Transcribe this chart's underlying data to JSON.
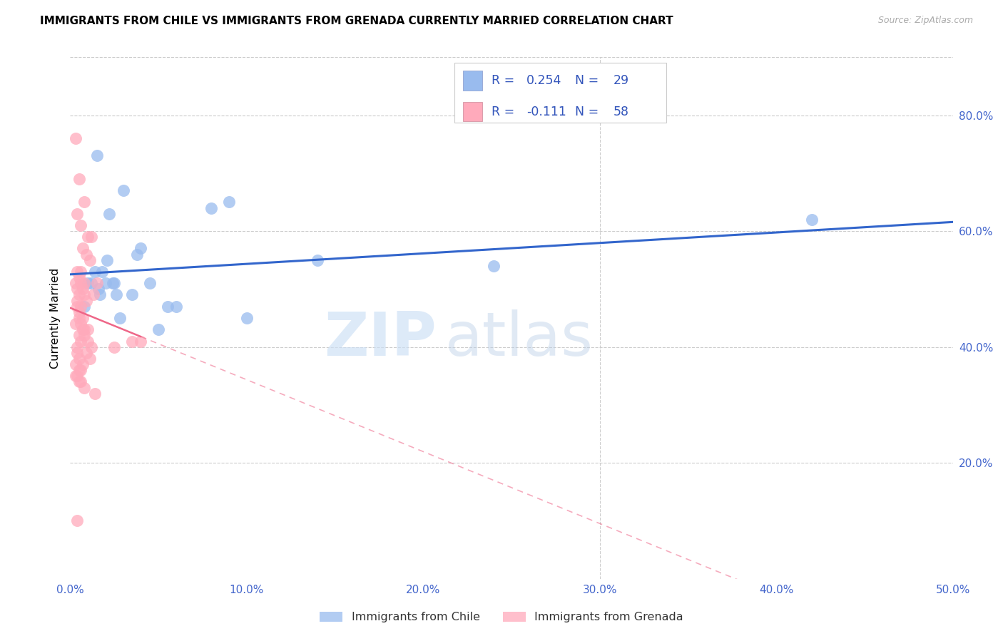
{
  "title": "IMMIGRANTS FROM CHILE VS IMMIGRANTS FROM GRENADA CURRENTLY MARRIED CORRELATION CHART",
  "source": "Source: ZipAtlas.com",
  "ylabel": "Currently Married",
  "x_ticks": [
    0.0,
    10.0,
    20.0,
    30.0,
    40.0,
    50.0
  ],
  "y_ticks_right": [
    20.0,
    40.0,
    60.0,
    80.0
  ],
  "xlim": [
    0.0,
    50.0
  ],
  "ylim": [
    0.0,
    90.0
  ],
  "chile_R": "0.254",
  "chile_N": "29",
  "grenada_R": "-0.111",
  "grenada_N": "58",
  "chile_color": "#99bbee",
  "grenada_color": "#ffaabb",
  "chile_line_color": "#3366cc",
  "grenada_line_color": "#ee6688",
  "legend_text_color": "#3355bb",
  "tick_color": "#4466cc",
  "legend_chile_label": "Immigrants from Chile",
  "legend_grenada_label": "Immigrants from Grenada",
  "chile_x": [
    1.5,
    3.0,
    2.2,
    4.0,
    8.0,
    3.8,
    1.8,
    1.0,
    2.5,
    1.6,
    2.0,
    3.5,
    4.5,
    9.0,
    14.0,
    1.2,
    2.8,
    1.7,
    0.8,
    5.0,
    2.4,
    2.6,
    5.5,
    2.1,
    42.0,
    24.0,
    10.0,
    1.4,
    6.0
  ],
  "chile_y": [
    73.0,
    67.0,
    63.0,
    57.0,
    64.0,
    56.0,
    53.0,
    51.0,
    51.0,
    50.0,
    51.0,
    49.0,
    51.0,
    65.0,
    55.0,
    51.0,
    45.0,
    49.0,
    47.0,
    43.0,
    51.0,
    49.0,
    47.0,
    55.0,
    62.0,
    54.0,
    45.0,
    53.0,
    47.0
  ],
  "grenada_x": [
    0.3,
    0.5,
    0.8,
    0.4,
    0.6,
    1.0,
    1.2,
    0.7,
    0.9,
    1.1,
    0.4,
    0.6,
    0.5,
    0.8,
    1.5,
    0.3,
    0.6,
    0.4,
    0.7,
    0.5,
    0.8,
    1.3,
    0.9,
    3.5,
    4.0,
    0.4,
    0.6,
    0.5,
    0.7,
    0.3,
    0.8,
    1.0,
    0.5,
    0.6,
    0.4,
    0.9,
    1.1,
    0.7,
    0.5,
    0.3,
    0.6,
    0.8,
    1.4,
    2.5,
    0.4,
    0.5,
    0.6,
    0.7,
    0.8,
    1.0,
    1.2,
    0.4,
    0.5,
    0.3,
    0.6,
    0.4,
    0.5,
    0.4
  ],
  "grenada_y": [
    76.0,
    69.0,
    65.0,
    63.0,
    61.0,
    59.0,
    59.0,
    57.0,
    56.0,
    55.0,
    53.0,
    53.0,
    52.0,
    51.0,
    51.0,
    51.0,
    51.0,
    50.0,
    50.0,
    49.0,
    49.0,
    49.0,
    48.0,
    41.0,
    41.0,
    48.0,
    47.0,
    46.0,
    45.0,
    44.0,
    43.0,
    43.0,
    42.0,
    41.0,
    40.0,
    39.0,
    38.0,
    37.0,
    36.0,
    35.0,
    34.0,
    33.0,
    32.0,
    40.0,
    47.0,
    45.0,
    44.0,
    43.0,
    42.0,
    41.0,
    40.0,
    39.0,
    38.0,
    37.0,
    36.0,
    35.0,
    34.0,
    10.0
  ]
}
